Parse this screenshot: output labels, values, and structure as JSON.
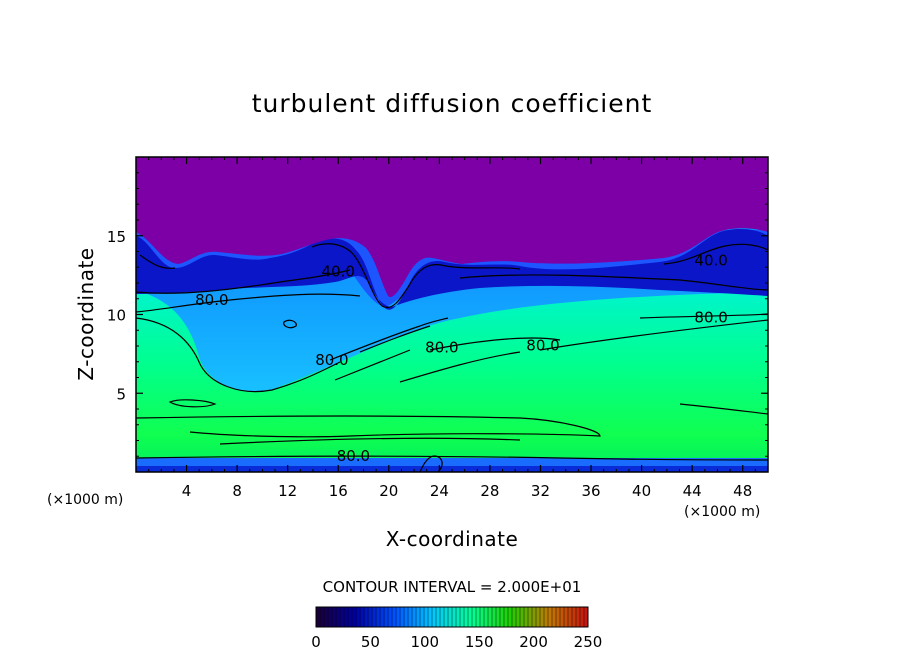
{
  "chart_data": {
    "type": "heatmap",
    "title": "turbulent diffusion coefficient",
    "xlabel": "X-coordinate",
    "ylabel": "Z-coordinate",
    "x_unit": "(×1000 m)",
    "y_unit": "(×1000 m)",
    "xlim": [
      0,
      50
    ],
    "ylim": [
      0,
      20
    ],
    "x_ticks": [
      4,
      8,
      12,
      16,
      20,
      24,
      28,
      32,
      36,
      40,
      44,
      48
    ],
    "y_ticks": [
      5,
      10,
      15
    ],
    "contour_interval_text": "CONTOUR INTERVAL = 2.000E+01",
    "contour_labels": [
      {
        "text": "80.0",
        "x": 6,
        "z": 10.6
      },
      {
        "text": "40.0",
        "x": 16,
        "z": 12.4
      },
      {
        "text": "40.0",
        "x": 45.5,
        "z": 13.1
      },
      {
        "text": "80.0",
        "x": 45.5,
        "z": 9.5
      },
      {
        "text": "80.0",
        "x": 15.5,
        "z": 6.8
      },
      {
        "text": "80.0",
        "x": 24.2,
        "z": 7.6
      },
      {
        "text": "80.0",
        "x": 32.2,
        "z": 7.7
      },
      {
        "text": "80.0",
        "x": 17.2,
        "z": 0.7
      }
    ],
    "colorbar": {
      "range": [
        0,
        250
      ],
      "tick_values": [
        0,
        50,
        100,
        150,
        200,
        250
      ],
      "tick_labels": [
        "0",
        "50",
        "100",
        "150",
        "200",
        "250"
      ],
      "colors": [
        "#1a0033",
        "#0000a0",
        "#0050ff",
        "#00c8ff",
        "#00ff96",
        "#20d000",
        "#c07a00",
        "#c81010"
      ]
    },
    "field_colors": {
      "top_layer": "#7e00a8",
      "deep_blue": "#0014c8",
      "blue": "#1258ff",
      "light_blue": "#12a6ff",
      "cyan": "#00e6e6",
      "green": "#00ff64"
    }
  }
}
